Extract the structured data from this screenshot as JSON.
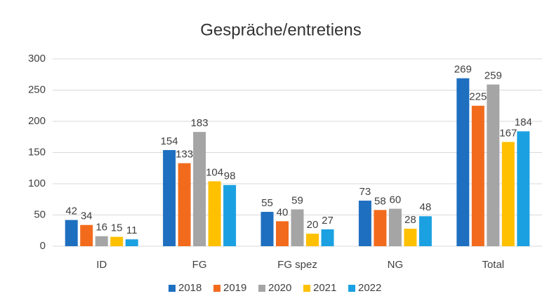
{
  "chart_data": {
    "type": "bar",
    "title": "Gespräche/entretiens",
    "categories": [
      "ID",
      "FG",
      "FG spez",
      "NG",
      "Total"
    ],
    "series": [
      {
        "name": "2018",
        "color": "#1f6fc0",
        "values": [
          42,
          154,
          55,
          73,
          269
        ]
      },
      {
        "name": "2019",
        "color": "#f26b1d",
        "values": [
          34,
          133,
          40,
          58,
          225
        ]
      },
      {
        "name": "2020",
        "color": "#a5a5a5",
        "values": [
          16,
          183,
          59,
          60,
          259
        ]
      },
      {
        "name": "2021",
        "color": "#ffc000",
        "values": [
          15,
          104,
          20,
          28,
          167
        ]
      },
      {
        "name": "2022",
        "color": "#1ba1e2",
        "values": [
          11,
          98,
          27,
          48,
          184
        ]
      }
    ],
    "ylim": [
      0,
      300
    ],
    "yticks": [
      0,
      50,
      100,
      150,
      200,
      250,
      300
    ],
    "grid": true,
    "legend": "bottom"
  }
}
